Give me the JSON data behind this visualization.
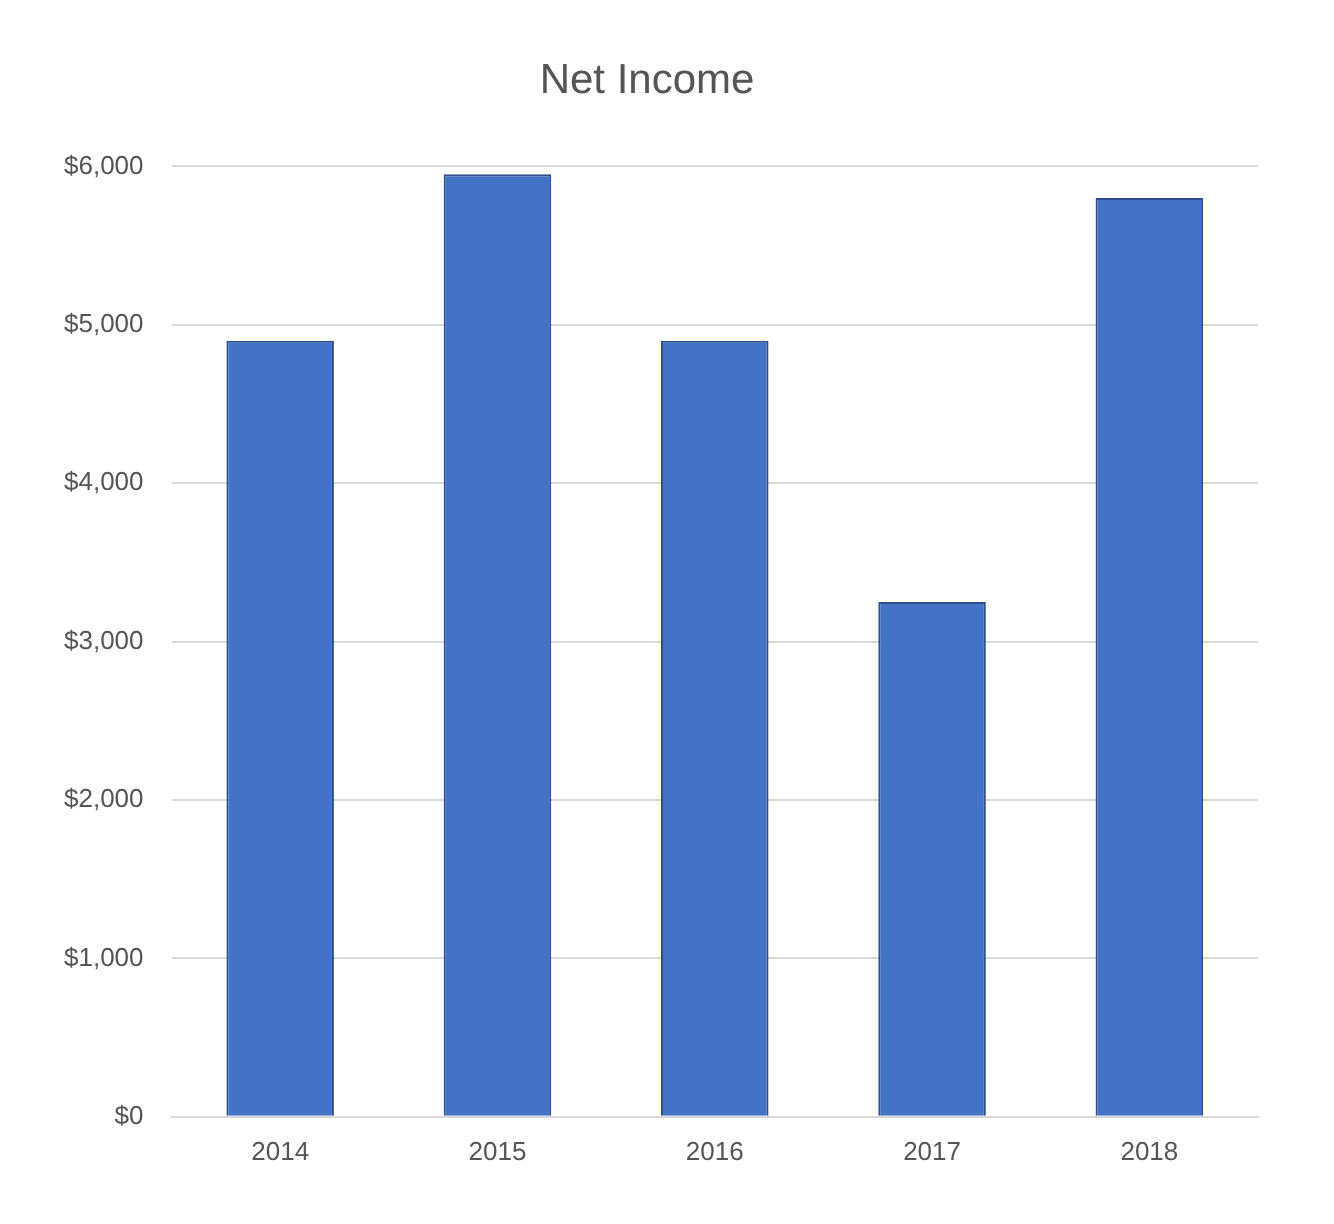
{
  "chart_data": {
    "type": "bar",
    "title": "Net Income",
    "categories": [
      "2014",
      "2015",
      "2016",
      "2017",
      "2018"
    ],
    "values": [
      4900,
      5950,
      4900,
      3250,
      5800
    ],
    "color": "#4472c4",
    "ylim": [
      0,
      6000
    ],
    "yticks": [
      {
        "value": 0,
        "label": "$0"
      },
      {
        "value": 1000,
        "label": "$1,000"
      },
      {
        "value": 2000,
        "label": "$2,000"
      },
      {
        "value": 3000,
        "label": "$3,000"
      },
      {
        "value": 4000,
        "label": "$4,000"
      },
      {
        "value": 5000,
        "label": "$5,000"
      },
      {
        "value": 6000,
        "label": "$6,000"
      }
    ],
    "grid": "y"
  }
}
